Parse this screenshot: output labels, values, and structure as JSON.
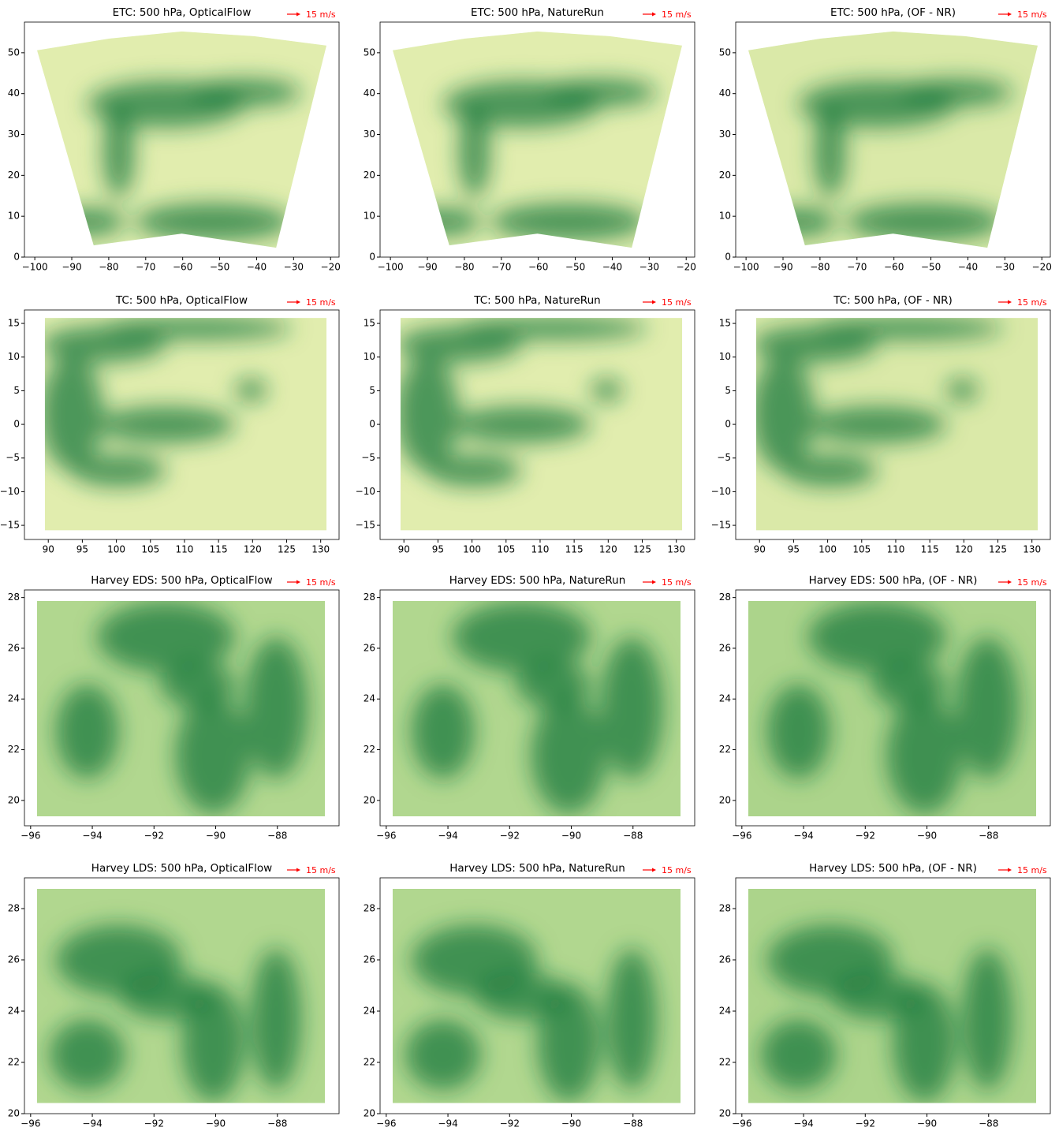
{
  "chart_data": [
    {
      "type": "quiver",
      "title": "ETC: 500 hPa, OpticalFlow",
      "ref_label": "15 m/s",
      "ref_color": "#ff0000",
      "xlim": [
        -102.8,
        -17.7
      ],
      "ylim": [
        0,
        57.5
      ],
      "xticks": [
        {
          "value": -100,
          "label": "−100"
        },
        {
          "value": -90,
          "label": "−90"
        },
        {
          "value": -80,
          "label": "−80"
        },
        {
          "value": -70,
          "label": "−70"
        },
        {
          "value": -60,
          "label": "−60"
        },
        {
          "value": -50,
          "label": "−50"
        },
        {
          "value": -40,
          "label": "−40"
        },
        {
          "value": -30,
          "label": "−30"
        },
        {
          "value": -20,
          "label": "−20"
        }
      ],
      "yticks": [
        0,
        10,
        20,
        30,
        40,
        50
      ]
    },
    {
      "type": "quiver",
      "title": "ETC: 500 hPa, NatureRun",
      "ref_label": "15 m/s",
      "ref_color": "#ff0000",
      "xlim": [
        -102.8,
        -17.7
      ],
      "ylim": [
        0,
        57.5
      ],
      "xticks": [
        {
          "value": -100,
          "label": "−100"
        },
        {
          "value": -90,
          "label": "−90"
        },
        {
          "value": -80,
          "label": "−80"
        },
        {
          "value": -70,
          "label": "−70"
        },
        {
          "value": -60,
          "label": "−60"
        },
        {
          "value": -50,
          "label": "−50"
        },
        {
          "value": -40,
          "label": "−40"
        },
        {
          "value": -30,
          "label": "−30"
        },
        {
          "value": -20,
          "label": "−20"
        }
      ],
      "yticks": [
        0,
        10,
        20,
        30,
        40,
        50
      ]
    },
    {
      "type": "quiver",
      "title": "ETC: 500 hPa, (OF - NR)",
      "ref_label": "15 m/s",
      "ref_color": "#ff0000",
      "xlim": [
        -102.8,
        -17.7
      ],
      "ylim": [
        0,
        57.5
      ],
      "xticks": [
        {
          "value": -100,
          "label": "−100"
        },
        {
          "value": -90,
          "label": "−90"
        },
        {
          "value": -80,
          "label": "−80"
        },
        {
          "value": -70,
          "label": "−70"
        },
        {
          "value": -60,
          "label": "−60"
        },
        {
          "value": -50,
          "label": "−50"
        },
        {
          "value": -40,
          "label": "−40"
        },
        {
          "value": -30,
          "label": "−30"
        },
        {
          "value": -20,
          "label": "−20"
        }
      ],
      "yticks": [
        0,
        10,
        20,
        30,
        40,
        50
      ]
    },
    {
      "type": "quiver",
      "title": "TC: 500 hPa, OpticalFlow",
      "ref_label": "15 m/s",
      "ref_color": "#ff0000",
      "xlim": [
        86.5,
        132.7
      ],
      "ylim": [
        -17.1,
        17
      ],
      "xticks": [
        90,
        95,
        100,
        105,
        110,
        115,
        120,
        125,
        130
      ],
      "yticks": [
        {
          "value": -15,
          "label": "−15"
        },
        {
          "value": -10,
          "label": "−10"
        },
        {
          "value": -5,
          "label": "−5"
        },
        0,
        5,
        10,
        15
      ]
    },
    {
      "type": "quiver",
      "title": "TC: 500 hPa, NatureRun",
      "ref_label": "15 m/s",
      "ref_color": "#ff0000",
      "xlim": [
        86.5,
        132.7
      ],
      "ylim": [
        -17.1,
        17
      ],
      "xticks": [
        90,
        95,
        100,
        105,
        110,
        115,
        120,
        125,
        130
      ],
      "yticks": [
        {
          "value": -15,
          "label": "−15"
        },
        {
          "value": -10,
          "label": "−10"
        },
        {
          "value": -5,
          "label": "−5"
        },
        0,
        5,
        10,
        15
      ]
    },
    {
      "type": "quiver",
      "title": "TC: 500 hPa, (OF - NR)",
      "ref_label": "15 m/s",
      "ref_color": "#ff0000",
      "xlim": [
        86.5,
        132.7
      ],
      "ylim": [
        -17.1,
        17
      ],
      "xticks": [
        90,
        95,
        100,
        105,
        110,
        115,
        120,
        125,
        130
      ],
      "yticks": [
        {
          "value": -15,
          "label": "−15"
        },
        {
          "value": -10,
          "label": "−10"
        },
        {
          "value": -5,
          "label": "−5"
        },
        0,
        5,
        10,
        15
      ]
    },
    {
      "type": "quiver",
      "title": "Harvey EDS: 500 hPa, OpticalFlow",
      "ref_label": "15 m/s",
      "ref_color": "#ff0000",
      "xlim": [
        -96.2,
        -86
      ],
      "ylim": [
        19,
        28.3
      ],
      "xticks": [
        {
          "value": -96,
          "label": "−96"
        },
        {
          "value": -94,
          "label": "−94"
        },
        {
          "value": -92,
          "label": "−92"
        },
        {
          "value": -90,
          "label": "−90"
        },
        {
          "value": -88,
          "label": "−88"
        }
      ],
      "yticks": [
        20,
        22,
        24,
        26,
        28
      ]
    },
    {
      "type": "quiver",
      "title": "Harvey EDS: 500 hPa, NatureRun",
      "ref_label": "15 m/s",
      "ref_color": "#ff0000",
      "xlim": [
        -96.2,
        -86
      ],
      "ylim": [
        19,
        28.3
      ],
      "xticks": [
        {
          "value": -96,
          "label": "−96"
        },
        {
          "value": -94,
          "label": "−94"
        },
        {
          "value": -92,
          "label": "−92"
        },
        {
          "value": -90,
          "label": "−90"
        },
        {
          "value": -88,
          "label": "−88"
        }
      ],
      "yticks": [
        20,
        22,
        24,
        26,
        28
      ]
    },
    {
      "type": "quiver",
      "title": "Harvey EDS: 500 hPa, (OF - NR)",
      "ref_label": "15 m/s",
      "ref_color": "#ff0000",
      "xlim": [
        -96.2,
        -86
      ],
      "ylim": [
        19,
        28.3
      ],
      "xticks": [
        {
          "value": -96,
          "label": "−96"
        },
        {
          "value": -94,
          "label": "−94"
        },
        {
          "value": -92,
          "label": "−92"
        },
        {
          "value": -90,
          "label": "−90"
        },
        {
          "value": -88,
          "label": "−88"
        }
      ],
      "yticks": [
        20,
        22,
        24,
        26,
        28
      ]
    },
    {
      "type": "quiver",
      "title": "Harvey LDS: 500 hPa, OpticalFlow",
      "ref_label": "15 m/s",
      "ref_color": "#ff0000",
      "xlim": [
        -96.2,
        -86
      ],
      "ylim": [
        20,
        29.2
      ],
      "xticks": [
        {
          "value": -96,
          "label": "−96"
        },
        {
          "value": -94,
          "label": "−94"
        },
        {
          "value": -92,
          "label": "−92"
        },
        {
          "value": -90,
          "label": "−90"
        },
        {
          "value": -88,
          "label": "−88"
        }
      ],
      "yticks": [
        20,
        22,
        24,
        26,
        28
      ]
    },
    {
      "type": "quiver",
      "title": "Harvey LDS: 500 hPa, NatureRun",
      "ref_label": "15 m/s",
      "ref_color": "#ff0000",
      "xlim": [
        -96.2,
        -86
      ],
      "ylim": [
        20,
        29.2
      ],
      "xticks": [
        {
          "value": -96,
          "label": "−96"
        },
        {
          "value": -94,
          "label": "−94"
        },
        {
          "value": -92,
          "label": "−92"
        },
        {
          "value": -90,
          "label": "−90"
        },
        {
          "value": -88,
          "label": "−88"
        }
      ],
      "yticks": [
        20,
        22,
        24,
        26,
        28
      ]
    },
    {
      "type": "quiver",
      "title": "Harvey LDS: 500 hPa, (OF - NR)",
      "ref_label": "15 m/s",
      "ref_color": "#ff0000",
      "xlim": [
        -96.2,
        -86
      ],
      "ylim": [
        20,
        29.2
      ],
      "xticks": [
        {
          "value": -96,
          "label": "−96"
        },
        {
          "value": -94,
          "label": "−94"
        },
        {
          "value": -92,
          "label": "−92"
        },
        {
          "value": -90,
          "label": "−90"
        },
        {
          "value": -88,
          "label": "−88"
        }
      ],
      "yticks": [
        20,
        22,
        24,
        26,
        28
      ]
    }
  ]
}
